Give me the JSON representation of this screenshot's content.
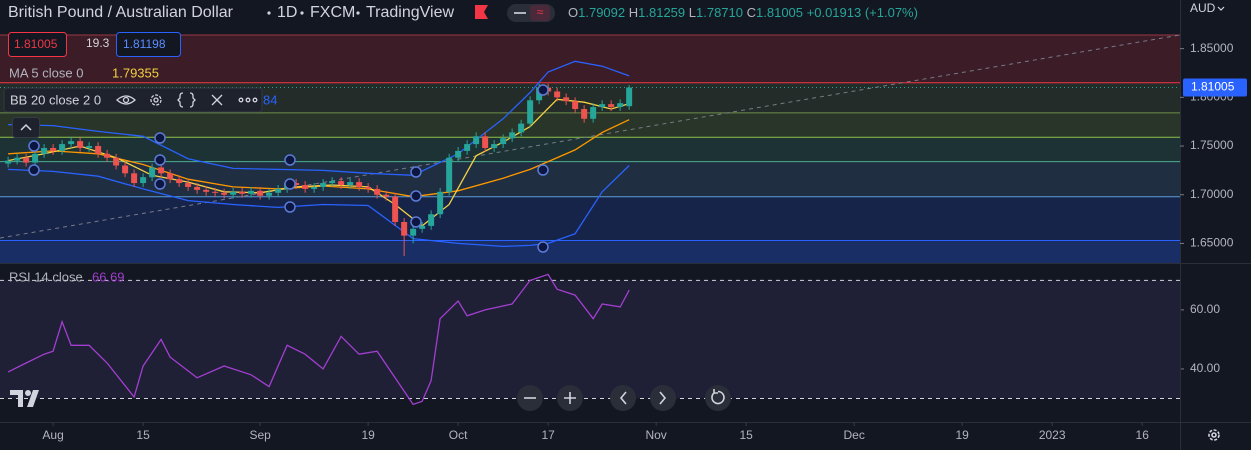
{
  "header": {
    "symbol": "British Pound / Australian Dollar",
    "interval": "1D",
    "source": "FXCM",
    "platform": "TradingView",
    "ohlc_labels": [
      "O",
      "H",
      "L",
      "C"
    ],
    "ohlc_values": [
      "1.79092",
      "1.81259",
      "1.78710",
      "1.81005"
    ],
    "change": "+0.01913 (+1.07%)",
    "bb_tail": "84"
  },
  "trade": {
    "sell": "1.81005",
    "spread": "19.3",
    "buy": "1.81198"
  },
  "currency": "AUD",
  "chart_data": [
    {
      "type": "candlestick",
      "xlim": [
        -0.9,
        130.2
      ],
      "xticks": [
        {
          "value": 5,
          "label": "Aug"
        },
        {
          "value": 15,
          "label": "15"
        },
        {
          "value": 28,
          "label": "Sep"
        },
        {
          "value": 40,
          "label": "19"
        },
        {
          "value": 50,
          "label": "Oct"
        },
        {
          "value": 60,
          "label": "17"
        },
        {
          "value": 72,
          "label": "Nov"
        },
        {
          "value": 82,
          "label": "15"
        },
        {
          "value": 94,
          "label": "Dec"
        },
        {
          "value": 106,
          "label": "19"
        },
        {
          "value": 116,
          "label": "2023"
        },
        {
          "value": 126,
          "label": "16"
        }
      ],
      "ylim": [
        1.633,
        1.864
      ],
      "yticks": [
        {
          "value": 1.65,
          "label": "1.65000"
        },
        {
          "value": 1.7,
          "label": "1.70000"
        },
        {
          "value": 1.75,
          "label": "1.75000"
        },
        {
          "value": 1.8,
          "label": "1.80000"
        },
        {
          "value": 1.85,
          "label": "1.85000"
        }
      ],
      "up_color": "#26a69a",
      "down_color": "#ef5350",
      "open": [
        1.732,
        1.735,
        1.738,
        1.733,
        1.742,
        1.748,
        1.745,
        1.752,
        1.755,
        1.748,
        1.75,
        1.742,
        1.738,
        1.73,
        1.722,
        1.712,
        1.718,
        1.728,
        1.722,
        1.716,
        1.712,
        1.708,
        1.705,
        1.703,
        1.702,
        1.7,
        1.703,
        1.701,
        1.704,
        1.699,
        1.702,
        1.706,
        1.712,
        1.71,
        1.706,
        1.708,
        1.712,
        1.714,
        1.71,
        1.713,
        1.708,
        1.706,
        1.7,
        1.698,
        1.672,
        1.658,
        1.665,
        1.668,
        1.68,
        1.703,
        1.738,
        1.745,
        1.752,
        1.76,
        1.748,
        1.752,
        1.758,
        1.764,
        1.773,
        1.797,
        1.81,
        1.806,
        1.8,
        1.796,
        1.788,
        1.778,
        1.79,
        1.793,
        1.79,
        1.79092
      ],
      "high": [
        1.739,
        1.742,
        1.742,
        1.746,
        1.752,
        1.752,
        1.756,
        1.759,
        1.759,
        1.754,
        1.754,
        1.746,
        1.742,
        1.734,
        1.726,
        1.722,
        1.732,
        1.732,
        1.726,
        1.72,
        1.716,
        1.712,
        1.709,
        1.707,
        1.706,
        1.707,
        1.707,
        1.708,
        1.708,
        1.706,
        1.71,
        1.716,
        1.716,
        1.714,
        1.712,
        1.716,
        1.718,
        1.718,
        1.717,
        1.717,
        1.712,
        1.71,
        1.704,
        1.702,
        1.676,
        1.669,
        1.672,
        1.684,
        1.707,
        1.742,
        1.749,
        1.756,
        1.764,
        1.764,
        1.756,
        1.762,
        1.768,
        1.777,
        1.801,
        1.814,
        1.814,
        1.81,
        1.804,
        1.8,
        1.792,
        1.794,
        1.797,
        1.797,
        1.798,
        1.81259
      ],
      "low": [
        1.728,
        1.731,
        1.729,
        1.729,
        1.738,
        1.741,
        1.741,
        1.748,
        1.744,
        1.744,
        1.738,
        1.734,
        1.726,
        1.718,
        1.708,
        1.708,
        1.714,
        1.718,
        1.712,
        1.708,
        1.704,
        1.701,
        1.699,
        1.698,
        1.696,
        1.696,
        1.697,
        1.697,
        1.695,
        1.695,
        1.698,
        1.702,
        1.706,
        1.702,
        1.702,
        1.704,
        1.708,
        1.706,
        1.706,
        1.704,
        1.702,
        1.696,
        1.694,
        1.668,
        1.637,
        1.65,
        1.661,
        1.664,
        1.676,
        1.699,
        1.734,
        1.741,
        1.748,
        1.744,
        1.744,
        1.748,
        1.754,
        1.76,
        1.769,
        1.793,
        1.802,
        1.796,
        1.792,
        1.784,
        1.774,
        1.774,
        1.786,
        1.786,
        1.786,
        1.7871
      ],
      "close": [
        1.735,
        1.738,
        1.733,
        1.742,
        1.748,
        1.745,
        1.752,
        1.755,
        1.748,
        1.75,
        1.742,
        1.738,
        1.73,
        1.722,
        1.712,
        1.718,
        1.728,
        1.722,
        1.716,
        1.712,
        1.708,
        1.705,
        1.703,
        1.702,
        1.7,
        1.703,
        1.701,
        1.704,
        1.699,
        1.702,
        1.706,
        1.712,
        1.71,
        1.706,
        1.708,
        1.712,
        1.714,
        1.71,
        1.713,
        1.708,
        1.706,
        1.7,
        1.698,
        1.672,
        1.658,
        1.665,
        1.668,
        1.68,
        1.703,
        1.738,
        1.745,
        1.752,
        1.76,
        1.748,
        1.752,
        1.758,
        1.764,
        1.773,
        1.797,
        1.81,
        1.806,
        1.8,
        1.796,
        1.788,
        1.778,
        1.79,
        1.793,
        1.79,
        1.794,
        1.81005
      ],
      "levels": [
        {
          "value": 1.864,
          "color": "#9b3a46"
        },
        {
          "value": 1.815,
          "color": "#f23645"
        },
        {
          "value": 1.784,
          "color": "#6f8f4a"
        },
        {
          "value": 1.759,
          "color": "#8bc34a"
        },
        {
          "value": 1.734,
          "color": "#4caf8f"
        },
        {
          "value": 1.698,
          "color": "#5b9bd5"
        },
        {
          "value": 1.653,
          "color": "#2962ff"
        }
      ],
      "ma": {
        "name": "MA 5 close 0",
        "color": "#f5d142",
        "x": [
          0,
          4,
          8,
          12,
          16,
          20,
          24,
          28,
          32,
          36,
          40,
          43,
          46,
          49,
          52,
          55,
          58,
          61,
          64,
          67,
          69
        ],
        "values": [
          1.735,
          1.742,
          1.75,
          1.738,
          1.72,
          1.713,
          1.703,
          1.702,
          1.708,
          1.71,
          1.708,
          1.69,
          1.668,
          1.69,
          1.74,
          1.754,
          1.77,
          1.798,
          1.795,
          1.788,
          1.79355
        ]
      },
      "bb": {
        "name": "BB 20 close 2 0",
        "band_color": "#2962ff",
        "basis_color": "#ff9800",
        "x": [
          0,
          5,
          10,
          15,
          20,
          25,
          30,
          35,
          40,
          45,
          50,
          55,
          58,
          60,
          63,
          66,
          69
        ],
        "upper": [
          1.772,
          1.771,
          1.765,
          1.76,
          1.737,
          1.727,
          1.726,
          1.725,
          1.722,
          1.72,
          1.742,
          1.778,
          1.805,
          1.826,
          1.837,
          1.832,
          1.822
        ],
        "basis": [
          1.742,
          1.745,
          1.742,
          1.731,
          1.716,
          1.708,
          1.706,
          1.709,
          1.706,
          1.698,
          1.704,
          1.717,
          1.726,
          1.734,
          1.746,
          1.764,
          1.777
        ],
        "lower": [
          1.726,
          1.724,
          1.719,
          1.706,
          1.694,
          1.69,
          1.687,
          1.69,
          1.689,
          1.655,
          1.65,
          1.647,
          1.648,
          1.65,
          1.66,
          1.703,
          1.73
        ]
      }
    },
    {
      "type": "line",
      "name": "RSI 14 close",
      "color": "#a23fd0",
      "ylim": [
        22.7,
        75.2
      ],
      "yticks": [
        {
          "value": 40,
          "label": "40.00"
        },
        {
          "value": 60,
          "label": "60.00"
        }
      ],
      "levels": [
        70,
        30
      ],
      "x": [
        0,
        2,
        4,
        5,
        6,
        7,
        9,
        11,
        14,
        15,
        17,
        18,
        21,
        24,
        27,
        29,
        31,
        33,
        35,
        37,
        39,
        41,
        43,
        45,
        46,
        47,
        48,
        50,
        51,
        53,
        56,
        58,
        60,
        61,
        63,
        65,
        66,
        68,
        69
      ],
      "values": [
        39,
        42,
        45,
        46,
        56,
        48,
        48,
        42,
        30.5,
        41,
        50,
        44,
        37,
        41,
        38,
        34,
        48,
        45,
        40,
        51,
        45,
        46,
        37,
        28,
        29,
        36,
        57,
        63,
        58,
        60,
        62,
        70,
        72,
        67,
        65,
        57,
        62,
        61,
        66.69
      ]
    }
  ]
}
